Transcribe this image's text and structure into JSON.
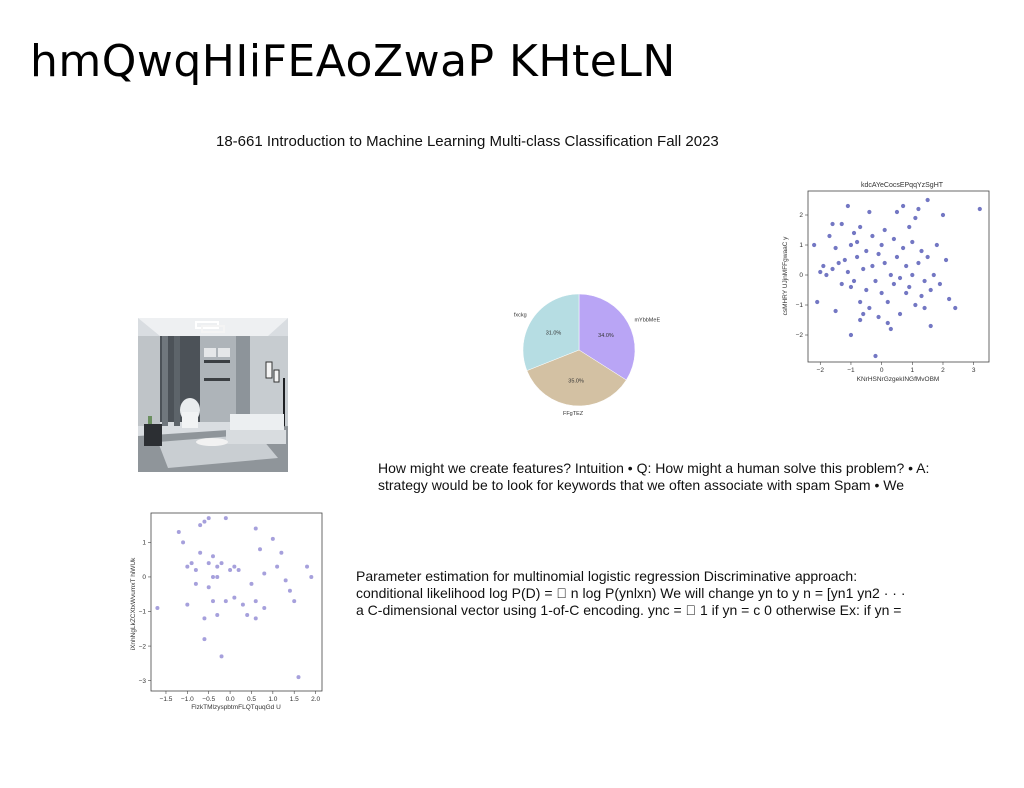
{
  "slide": {
    "title": "hmQwqHIiFEAoZwaP KHteLN",
    "subtitle": "18-661 Introduction to Machine Learning Multi-class Classification Fall 2023",
    "paragraph1": [
      "How might we create features? Intuition • Q: How might a human solve this problem? • A:",
      "strategy would be to look for keywords that we often associate with spam Spam • We"
    ],
    "paragraph2": [
      "Parameter estimation for multinomial logistic regression Discriminative approach:",
      "conditional likelihood log P(D) = \u0000 n log P(ynlxn) We will change yn to y n = [yn1 yn2 · · ·",
      "a C-dimensional vector using 1-of-C encoding. ync = \u0000 1 if yn = c 0 otherwise Ex: if yn ="
    ]
  },
  "image": {
    "subject": "living-room-photo"
  },
  "chart_data": [
    {
      "type": "scatter",
      "title": "kdcAYeCocsEPqqYzSgHT",
      "xlabel": "KNrHSNrGzgekINGfMvOBM",
      "ylabel": "csMHRY UJjnMFFgwaaC y",
      "xticks": [
        -2,
        -1,
        0,
        1,
        2,
        3
      ],
      "yticks": [
        -2,
        -1,
        0,
        1,
        2
      ],
      "xlim": [
        -2.4,
        3.5
      ],
      "ylim": [
        -2.9,
        2.8
      ],
      "color": "#5a5fb8",
      "points": [
        [
          -2.2,
          1.0
        ],
        [
          -2.1,
          -0.9
        ],
        [
          -2.0,
          0.1
        ],
        [
          -1.9,
          0.3
        ],
        [
          -1.8,
          0.0
        ],
        [
          -1.7,
          1.3
        ],
        [
          -1.6,
          0.2
        ],
        [
          -1.6,
          1.7
        ],
        [
          -1.5,
          -1.2
        ],
        [
          -1.4,
          0.4
        ],
        [
          -1.3,
          1.7
        ],
        [
          -1.3,
          -0.3
        ],
        [
          -1.2,
          0.5
        ],
        [
          -1.1,
          2.3
        ],
        [
          -1.1,
          0.1
        ],
        [
          -1.0,
          -2.0
        ],
        [
          -1.0,
          -0.4
        ],
        [
          -1.0,
          1.0
        ],
        [
          -0.9,
          1.4
        ],
        [
          -0.9,
          -0.2
        ],
        [
          -0.8,
          0.6
        ],
        [
          -0.8,
          1.1
        ],
        [
          -0.7,
          -0.9
        ],
        [
          -0.7,
          1.6
        ],
        [
          -0.6,
          0.2
        ],
        [
          -0.6,
          -1.3
        ],
        [
          -0.5,
          0.8
        ],
        [
          -0.5,
          -0.5
        ],
        [
          -0.4,
          2.1
        ],
        [
          -0.4,
          -1.1
        ],
        [
          -0.3,
          0.3
        ],
        [
          -0.3,
          1.3
        ],
        [
          -0.2,
          -0.2
        ],
        [
          -0.2,
          -2.7
        ],
        [
          -0.1,
          0.7
        ],
        [
          -0.1,
          -1.4
        ],
        [
          0.0,
          1.0
        ],
        [
          0.0,
          -0.6
        ],
        [
          0.1,
          0.4
        ],
        [
          0.1,
          1.5
        ],
        [
          0.2,
          -0.9
        ],
        [
          0.3,
          0.0
        ],
        [
          0.3,
          -1.8
        ],
        [
          0.4,
          1.2
        ],
        [
          0.4,
          -0.3
        ],
        [
          0.5,
          0.6
        ],
        [
          0.5,
          2.1
        ],
        [
          0.6,
          -0.1
        ],
        [
          0.6,
          -1.3
        ],
        [
          0.7,
          0.9
        ],
        [
          0.8,
          0.3
        ],
        [
          0.8,
          -0.6
        ],
        [
          0.9,
          1.6
        ],
        [
          0.9,
          -0.4
        ],
        [
          1.0,
          0.0
        ],
        [
          1.0,
          1.1
        ],
        [
          1.1,
          -1.0
        ],
        [
          1.2,
          0.4
        ],
        [
          1.2,
          2.2
        ],
        [
          1.3,
          -0.7
        ],
        [
          1.3,
          0.8
        ],
        [
          1.4,
          -0.2
        ],
        [
          1.4,
          -1.1
        ],
        [
          1.5,
          2.5
        ],
        [
          1.5,
          0.6
        ],
        [
          1.6,
          -0.5
        ],
        [
          1.6,
          -1.7
        ],
        [
          1.7,
          0.0
        ],
        [
          1.8,
          1.0
        ],
        [
          1.9,
          -0.3
        ],
        [
          2.0,
          2.0
        ],
        [
          2.1,
          0.5
        ],
        [
          2.2,
          -0.8
        ],
        [
          2.4,
          -1.1
        ],
        [
          3.2,
          2.2
        ],
        [
          -0.7,
          -1.5
        ],
        [
          0.2,
          -1.6
        ],
        [
          1.1,
          1.9
        ],
        [
          -1.5,
          0.9
        ],
        [
          0.7,
          2.3
        ]
      ]
    },
    {
      "type": "pie",
      "labels": [
        "mYbbMeE",
        "FFgTEZ",
        "fxckg"
      ],
      "values": [
        34.0,
        35.0,
        31.0
      ],
      "value_labels": [
        "34.0%",
        "35.0%",
        "31.0%"
      ],
      "colors": [
        "#b9a5f5",
        "#d3c1a3",
        "#b6dde3"
      ]
    },
    {
      "type": "scatter",
      "title": "",
      "xlabel": "FlzkTMlzyspbtmFLQTquqGd U",
      "ylabel": "iXnhNgLkZCXtxWvumxT hiWUk",
      "xticks": [
        -1.5,
        -1.0,
        -0.5,
        0.0,
        0.5,
        1.0,
        1.5,
        2.0
      ],
      "yticks": [
        -3,
        -2,
        -1,
        0,
        1
      ],
      "xlim": [
        -1.85,
        2.15
      ],
      "ylim": [
        -3.3,
        1.85
      ],
      "color": "#8880d0",
      "points": [
        [
          -1.7,
          -0.9
        ],
        [
          -1.2,
          1.3
        ],
        [
          -1.1,
          1.0
        ],
        [
          -1.0,
          0.3
        ],
        [
          -1.0,
          -0.8
        ],
        [
          -0.9,
          0.4
        ],
        [
          -0.8,
          0.2
        ],
        [
          -0.7,
          1.5
        ],
        [
          -0.7,
          0.7
        ],
        [
          -0.6,
          1.6
        ],
        [
          -0.6,
          -1.2
        ],
        [
          -0.6,
          -1.8
        ],
        [
          -0.5,
          1.7
        ],
        [
          -0.5,
          0.4
        ],
        [
          -0.5,
          -0.3
        ],
        [
          -0.4,
          0.6
        ],
        [
          -0.4,
          0.0
        ],
        [
          -0.4,
          -0.7
        ],
        [
          -0.3,
          0.3
        ],
        [
          -0.3,
          0.0
        ],
        [
          -0.3,
          -1.1
        ],
        [
          -0.2,
          -2.3
        ],
        [
          -0.1,
          1.7
        ],
        [
          -0.1,
          -0.7
        ],
        [
          0.0,
          0.2
        ],
        [
          0.1,
          -0.6
        ],
        [
          0.1,
          0.3
        ],
        [
          0.3,
          -0.8
        ],
        [
          0.4,
          -1.1
        ],
        [
          0.5,
          -0.2
        ],
        [
          0.6,
          1.4
        ],
        [
          0.6,
          -1.2
        ],
        [
          0.7,
          0.8
        ],
        [
          0.8,
          0.1
        ],
        [
          0.8,
          -0.9
        ],
        [
          1.0,
          1.1
        ],
        [
          1.2,
          0.7
        ],
        [
          1.3,
          -0.1
        ],
        [
          1.4,
          -0.4
        ],
        [
          1.5,
          -0.7
        ],
        [
          1.6,
          -2.9
        ],
        [
          1.8,
          0.3
        ],
        [
          1.9,
          0.0
        ],
        [
          -0.8,
          -0.2
        ],
        [
          0.2,
          0.2
        ],
        [
          1.1,
          0.3
        ],
        [
          0.6,
          -0.7
        ],
        [
          -0.2,
          0.4
        ]
      ]
    }
  ]
}
